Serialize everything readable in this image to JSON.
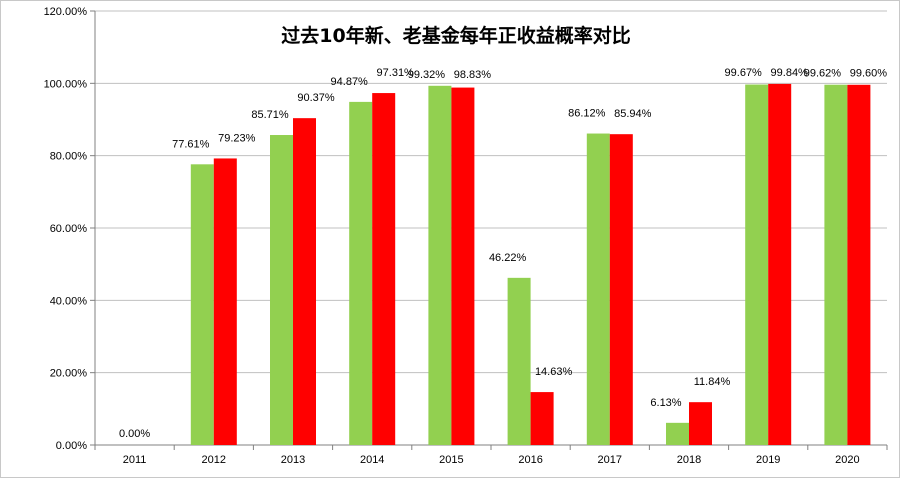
{
  "chart_data": {
    "type": "bar",
    "title": "过去10年新、老基金每年正收益概率对比",
    "categories": [
      "2011",
      "2012",
      "2013",
      "2014",
      "2015",
      "2016",
      "2017",
      "2018",
      "2019",
      "2020"
    ],
    "series": [
      {
        "color": "#92d050",
        "values": [
          0.0,
          77.61,
          85.71,
          94.87,
          99.32,
          46.22,
          86.12,
          6.13,
          99.67,
          99.62
        ],
        "labels": [
          "0.00%",
          "77.61%",
          "85.71%",
          "94.87%",
          "99.32%",
          "46.22%",
          "86.12%",
          "6.13%",
          "99.67%",
          "99.62%"
        ]
      },
      {
        "color": "#ff0000",
        "values": [
          0.0,
          79.23,
          90.37,
          97.31,
          98.83,
          14.63,
          85.94,
          11.84,
          99.84,
          99.6
        ],
        "labels": [
          "0.00%",
          "79.23%",
          "90.37%",
          "97.31%",
          "98.83%",
          "14.63%",
          "85.94%",
          "11.84%",
          "99.84%",
          "99.60%"
        ]
      }
    ],
    "yticks": [
      "0.00%",
      "20.00%",
      "40.00%",
      "60.00%",
      "80.00%",
      "100.00%",
      "120.00%"
    ],
    "ylim": [
      0,
      120
    ],
    "grid": "horizontal",
    "legend": "none"
  }
}
